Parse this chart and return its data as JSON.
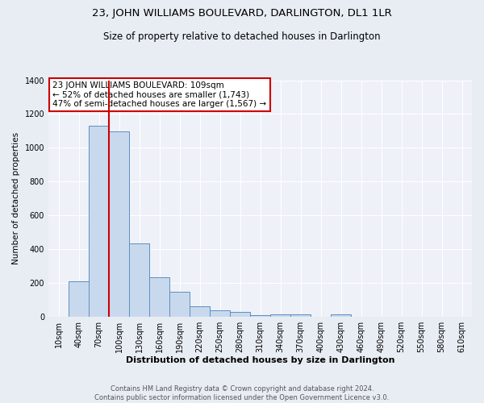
{
  "title": "23, JOHN WILLIAMS BOULEVARD, DARLINGTON, DL1 1LR",
  "subtitle": "Size of property relative to detached houses in Darlington",
  "xlabel": "Distribution of detached houses by size in Darlington",
  "ylabel": "Number of detached properties",
  "footer_line1": "Contains HM Land Registry data © Crown copyright and database right 2024.",
  "footer_line2": "Contains public sector information licensed under the Open Government Licence v3.0.",
  "bar_labels": [
    "10sqm",
    "40sqm",
    "70sqm",
    "100sqm",
    "130sqm",
    "160sqm",
    "190sqm",
    "220sqm",
    "250sqm",
    "280sqm",
    "310sqm",
    "340sqm",
    "370sqm",
    "400sqm",
    "430sqm",
    "460sqm",
    "490sqm",
    "520sqm",
    "550sqm",
    "580sqm",
    "610sqm"
  ],
  "bar_values": [
    0,
    207,
    1130,
    1095,
    435,
    232,
    148,
    60,
    38,
    25,
    10,
    15,
    15,
    0,
    12,
    0,
    0,
    0,
    0,
    0,
    0
  ],
  "bar_color": "#c9d9ed",
  "bar_edge_color": "#5a8fc2",
  "ylim": [
    0,
    1400
  ],
  "yticks": [
    0,
    200,
    400,
    600,
    800,
    1000,
    1200,
    1400
  ],
  "vline_x_index": 2.5,
  "property_line_label": "23 JOHN WILLIAMS BOULEVARD: 109sqm",
  "smaller_label": "← 52% of detached houses are smaller (1,743)",
  "larger_label": "47% of semi-detached houses are larger (1,567) →",
  "annotation_box_color": "#ffffff",
  "annotation_box_edge": "#cc0000",
  "vline_color": "#cc0000",
  "bg_color": "#e8edf4",
  "plot_bg_color": "#eef1f7",
  "title_fontsize": 9.5,
  "subtitle_fontsize": 8.5,
  "xlabel_fontsize": 8.0,
  "ylabel_fontsize": 7.5,
  "tick_fontsize": 7.0,
  "annot_fontsize": 7.5,
  "footer_fontsize": 6.0
}
